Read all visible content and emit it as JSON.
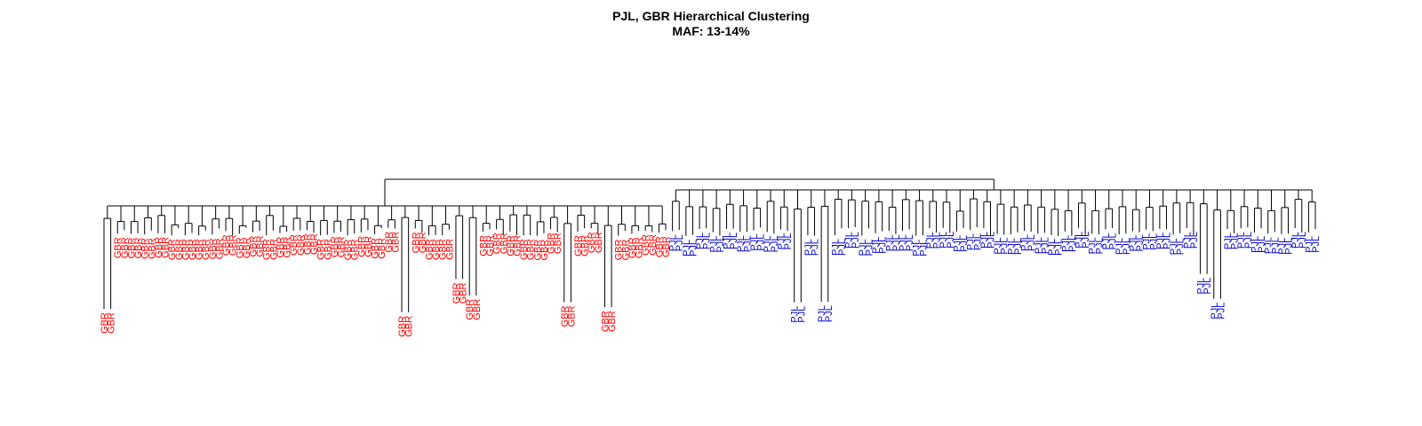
{
  "figure": {
    "title": "PJL, GBR Hierarchical Clustering",
    "subtitle": "MAF: 13-14%"
  },
  "colors": {
    "GBR": "#ff0000",
    "PJL": "#0000cc",
    "branch": "#000000"
  },
  "dendrogram": {
    "groups": [
      {
        "name": "GBR",
        "color_key": "GBR",
        "leaf_count": 84,
        "label": "GBR"
      },
      {
        "name": "PJL",
        "color_key": "PJL",
        "leaf_count": 96,
        "label": "PJL"
      }
    ]
  }
}
